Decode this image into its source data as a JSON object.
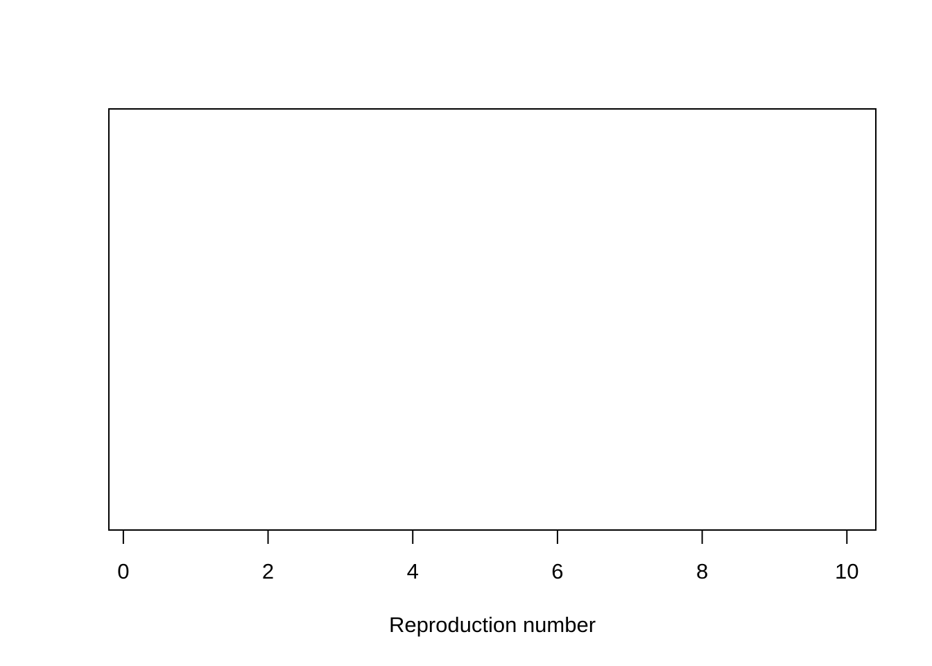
{
  "chart_data": {
    "type": "scatter",
    "title": "",
    "xlabel": "Reproduction number",
    "ylabel": "",
    "xlim": [
      -0.2,
      10.4
    ],
    "xticks": [
      0,
      2,
      4,
      6,
      8,
      10
    ],
    "xtick_labels": [
      "0",
      "2",
      "4",
      "6",
      "8",
      "10"
    ],
    "series": [],
    "grid": false,
    "legend": "none",
    "colors": {
      "axis": "#000000",
      "background": "#ffffff"
    }
  }
}
